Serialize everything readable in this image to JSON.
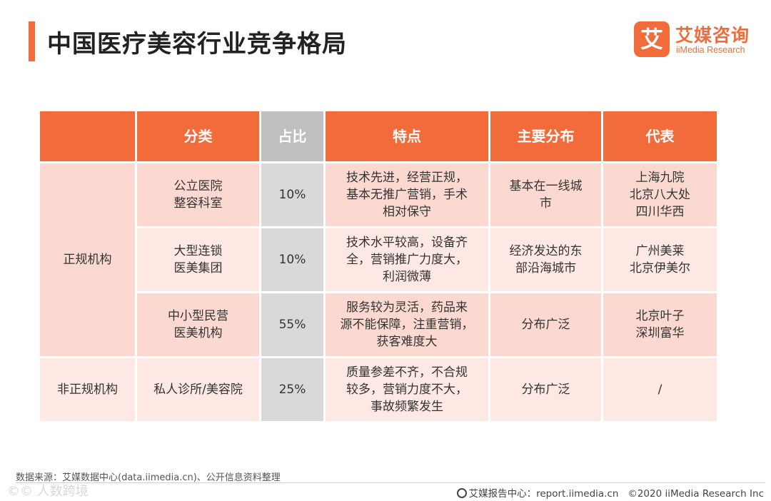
{
  "title": "中国医疗美容行业竞争格局",
  "logo": {
    "mark": "艾",
    "cn": "艾媒咨询",
    "en": "iiMedia Research"
  },
  "table": {
    "headers": {
      "category": "分类",
      "ratio": "占比",
      "features": "特点",
      "distribution": "主要分布",
      "representatives": "代表"
    },
    "groups": {
      "formal": "正规机构",
      "informal": "非正规机构"
    },
    "rows": [
      {
        "category": "公立医院\n整容科室",
        "ratio": "10%",
        "features": "技术先进，经营正规，\n基本无推广营销，手术\n相对保守",
        "distribution": "基本在一线城\n市",
        "representatives": "上海九院\n北京八大处\n四川华西"
      },
      {
        "category": "大型连锁\n医美集团",
        "ratio": "10%",
        "features": "技术水平较高，设备齐\n全，营销推广力度大，\n利润微薄",
        "distribution": "经济发达的东\n部沿海城市",
        "representatives": "广州美莱\n北京伊美尔"
      },
      {
        "category": "中小型民营\n医美机构",
        "ratio": "55%",
        "features": "服务较为灵活，药品来\n源不能保障，注重营销，\n获客难度大",
        "distribution": "分布广泛",
        "representatives": "北京叶子\n深圳富华"
      },
      {
        "category": "私人诊所/美容院",
        "ratio": "25%",
        "features": "质量参差不齐，不合规\n较多，营销力度不大，\n事故频繁发生",
        "distribution": "分布广泛",
        "representatives": "/"
      }
    ]
  },
  "footer": {
    "source": "数据来源：艾媒数据中心(data.iimedia.cn)、公开信息资料整理",
    "watermark": "©© 人数跨境",
    "report_center": "艾媒报告中心：report.iimedia.cn",
    "copyright": "©2020  iiMedia Research  Inc"
  },
  "colors": {
    "accent": "#f26b3a",
    "row_dark": "#fbd9d1",
    "row_light": "#fde8e3",
    "ratio_col": "#d9d9d9",
    "ratio_head": "#bfbfbf"
  }
}
